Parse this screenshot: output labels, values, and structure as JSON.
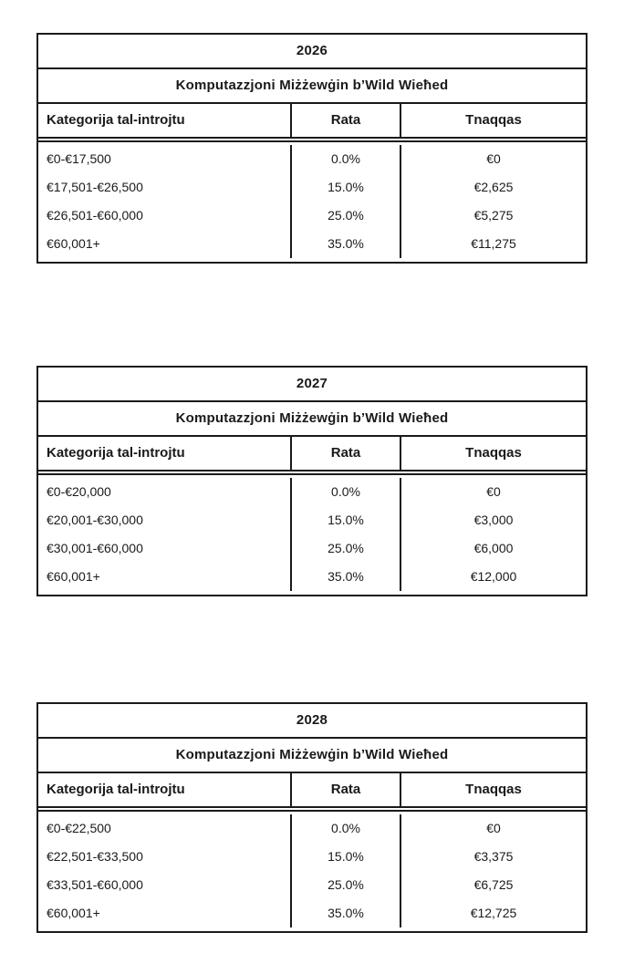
{
  "page": {
    "background_color": "#ffffff",
    "border_color": "#1a1a1a",
    "text_color": "#1a1a1a"
  },
  "tables": [
    {
      "year": "2026",
      "subtitle": "Komputazzjoni Miżżewġin b’Wild Wieħed",
      "columns": {
        "category": "Kategorija tal-introjtu",
        "rate": "Rata",
        "deduct": "Tnaqqas"
      },
      "rows": [
        {
          "category": "€0-€17,500",
          "rate": "0.0%",
          "deduct": "€0"
        },
        {
          "category": "€17,501-€26,500",
          "rate": "15.0%",
          "deduct": "€2,625"
        },
        {
          "category": "€26,501-€60,000",
          "rate": "25.0%",
          "deduct": "€5,275"
        },
        {
          "category": "€60,001+",
          "rate": "35.0%",
          "deduct": "€11,275"
        }
      ]
    },
    {
      "year": "2027",
      "subtitle": "Komputazzjoni Miżżewġin b’Wild Wieħed",
      "columns": {
        "category": "Kategorija tal-introjtu",
        "rate": "Rata",
        "deduct": "Tnaqqas"
      },
      "rows": [
        {
          "category": "€0-€20,000",
          "rate": "0.0%",
          "deduct": "€0"
        },
        {
          "category": "€20,001-€30,000",
          "rate": "15.0%",
          "deduct": "€3,000"
        },
        {
          "category": "€30,001-€60,000",
          "rate": "25.0%",
          "deduct": "€6,000"
        },
        {
          "category": "€60,001+",
          "rate": "35.0%",
          "deduct": "€12,000"
        }
      ]
    },
    {
      "year": "2028",
      "subtitle": "Komputazzjoni Miżżewġin b’Wild Wieħed",
      "columns": {
        "category": "Kategorija tal-introjtu",
        "rate": "Rata",
        "deduct": "Tnaqqas"
      },
      "rows": [
        {
          "category": "€0-€22,500",
          "rate": "0.0%",
          "deduct": "€0"
        },
        {
          "category": "€22,501-€33,500",
          "rate": "15.0%",
          "deduct": "€3,375"
        },
        {
          "category": "€33,501-€60,000",
          "rate": "25.0%",
          "deduct": "€6,725"
        },
        {
          "category": "€60,001+",
          "rate": "35.0%",
          "deduct": "€12,725"
        }
      ]
    }
  ]
}
